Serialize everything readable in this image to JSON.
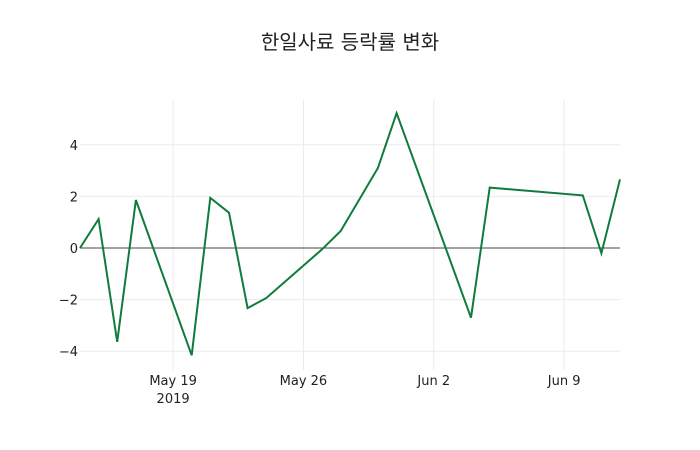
{
  "chart_data": {
    "type": "line",
    "title": "한일사료 등락률 변화",
    "xlabel": "",
    "ylabel": "",
    "x": [
      "2019-05-14",
      "2019-05-15",
      "2019-05-16",
      "2019-05-17",
      "2019-05-20",
      "2019-05-21",
      "2019-05-22",
      "2019-05-23",
      "2019-05-24",
      "2019-05-27",
      "2019-05-28",
      "2019-05-30",
      "2019-05-31",
      "2019-06-04",
      "2019-06-05",
      "2019-06-10",
      "2019-06-11",
      "2019-06-12"
    ],
    "series": [
      {
        "name": "등락률",
        "color": "#0f7b3c",
        "values": [
          0.0,
          1.12,
          -3.64,
          1.86,
          -4.16,
          1.94,
          1.37,
          -2.33,
          -1.94,
          -0.05,
          0.66,
          3.1,
          5.23,
          -2.7,
          2.34,
          2.04,
          -0.2,
          2.66
        ]
      }
    ],
    "x_ticks": [
      {
        "date": "2019-05-19",
        "label": "May 19",
        "sublabel": "2019"
      },
      {
        "date": "2019-05-26",
        "label": "May 26",
        "sublabel": ""
      },
      {
        "date": "2019-06-02",
        "label": "Jun 2",
        "sublabel": ""
      },
      {
        "date": "2019-06-09",
        "label": "Jun 9",
        "sublabel": ""
      }
    ],
    "y_ticks": [
      4,
      2,
      0,
      -2,
      -4
    ],
    "y_tick_labels": [
      "4",
      "2",
      "0",
      "−2",
      "−4"
    ],
    "xlim": [
      "2019-05-14",
      "2019-06-12"
    ],
    "ylim": [
      -4.5,
      5.8
    ],
    "grid": true,
    "zero_line": true,
    "legend": "none"
  }
}
